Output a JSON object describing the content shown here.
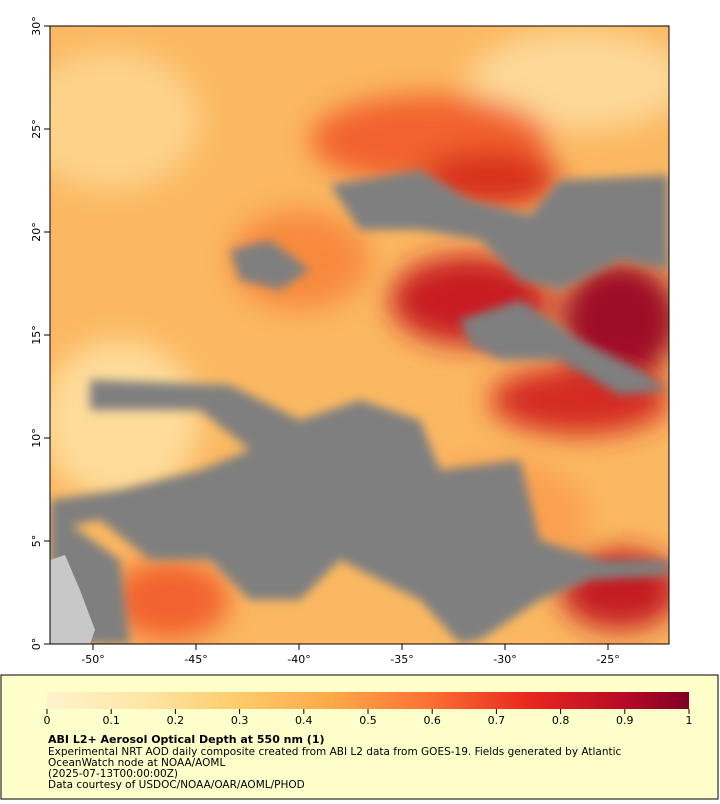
{
  "map": {
    "lat_ticks": [
      "30°",
      "25°",
      "20°",
      "15°",
      "10°",
      "5°",
      "0°"
    ],
    "lon_ticks": [
      "-50°",
      "-45°",
      "-40°",
      "-35°",
      "-30°",
      "-25°"
    ]
  },
  "colorbar": {
    "ticks": [
      0,
      0.1,
      0.2,
      0.3,
      0.4,
      0.5,
      0.6,
      0.7,
      0.8,
      0.9,
      1
    ]
  },
  "caption": {
    "title": "ABI L2+ Aerosol Optical Depth at 550 nm (1)",
    "lines": [
      "Experimental NRT AOD daily composite created from ABI L2 data from GOES-19. Fields generated by Atlantic",
      "OceanWatch node at NOAA/AOML",
      "(2025-07-13T00:00:00Z)",
      "Data courtesy of USDOC/NOAA/OAR/AOML/PHOD"
    ]
  }
}
